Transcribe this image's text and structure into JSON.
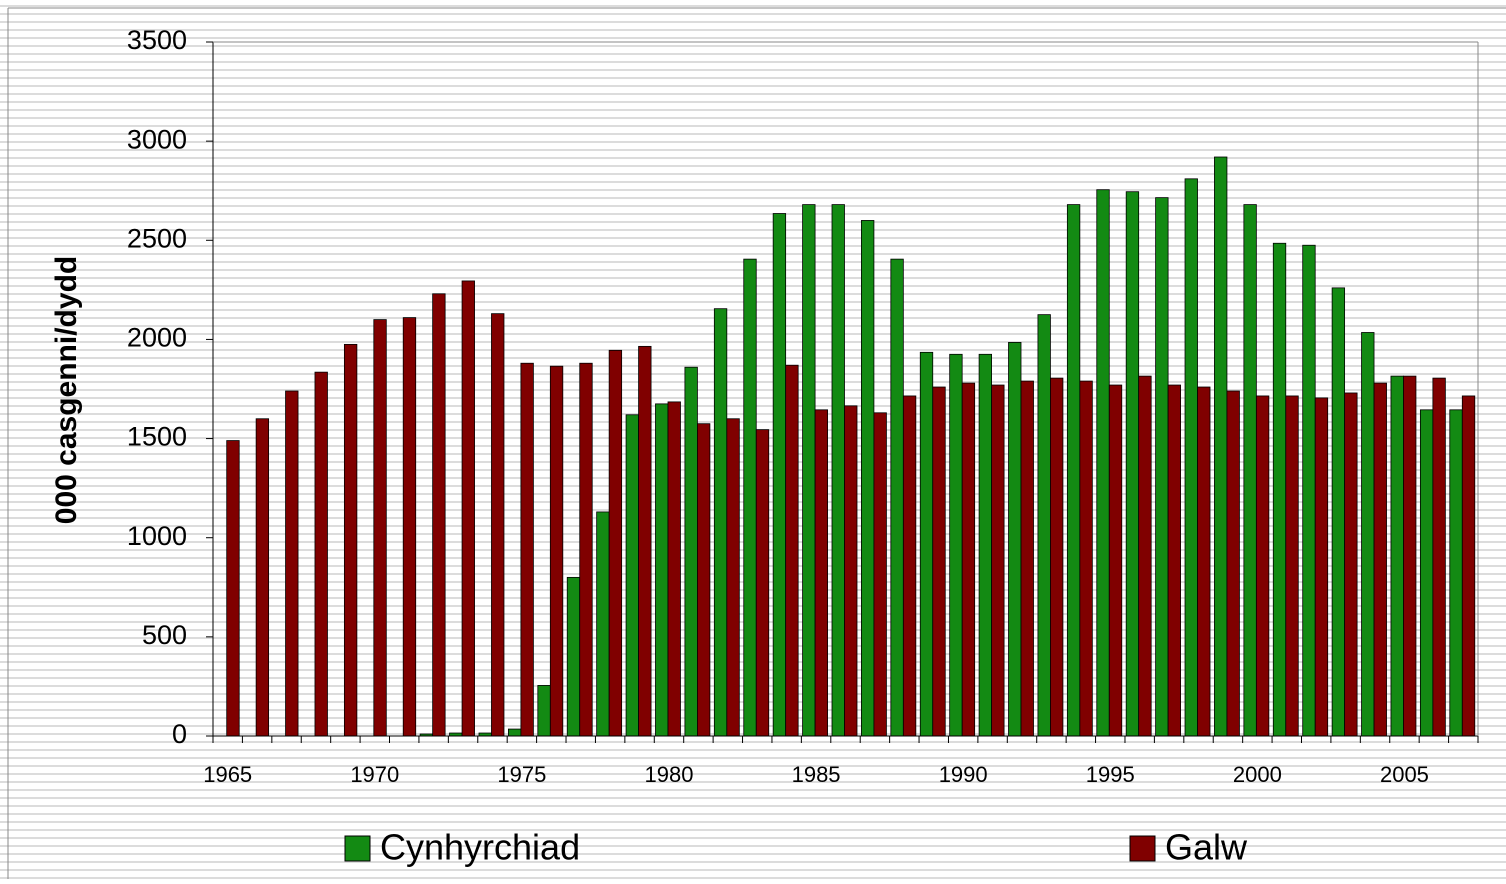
{
  "chart_data": {
    "type": "bar",
    "y_label": "000 casgenni/dydd",
    "categories": [
      "1965",
      null,
      null,
      null,
      null,
      "1970",
      null,
      null,
      null,
      null,
      "1975",
      null,
      null,
      null,
      null,
      "1980",
      null,
      null,
      null,
      null,
      "1985",
      null,
      null,
      null,
      null,
      "1990",
      null,
      null,
      null,
      null,
      "1995",
      null,
      null,
      null,
      null,
      "2000",
      null,
      null,
      null,
      null,
      "2005",
      null,
      null
    ],
    "series": [
      {
        "name": "Cynhyrchiad",
        "color": "#138a13",
        "values": [
          0,
          0,
          0,
          0,
          0,
          0,
          0,
          10,
          15,
          15,
          35,
          255,
          800,
          1130,
          1620,
          1675,
          1860,
          2155,
          2405,
          2635,
          2680,
          2680,
          2600,
          2405,
          1935,
          1925,
          1925,
          1985,
          2125,
          2680,
          2755,
          2745,
          2715,
          2810,
          2920,
          2680,
          2485,
          2475,
          2260,
          2035,
          1815,
          1645,
          1645
        ]
      },
      {
        "name": "Galw",
        "color": "#800000",
        "values": [
          1490,
          1600,
          1740,
          1835,
          1975,
          2100,
          2110,
          2230,
          2295,
          2130,
          1880,
          1865,
          1880,
          1945,
          1965,
          1685,
          1575,
          1600,
          1545,
          1870,
          1645,
          1665,
          1630,
          1715,
          1760,
          1780,
          1770,
          1790,
          1805,
          1790,
          1770,
          1815,
          1770,
          1760,
          1740,
          1715,
          1715,
          1705,
          1730,
          1780,
          1815,
          1805,
          1715
        ]
      }
    ],
    "ylim": [
      0,
      3500
    ],
    "yticks": [
      0,
      500,
      1000,
      1500,
      2000,
      2500,
      3000,
      3500
    ],
    "legend": "bottom"
  }
}
